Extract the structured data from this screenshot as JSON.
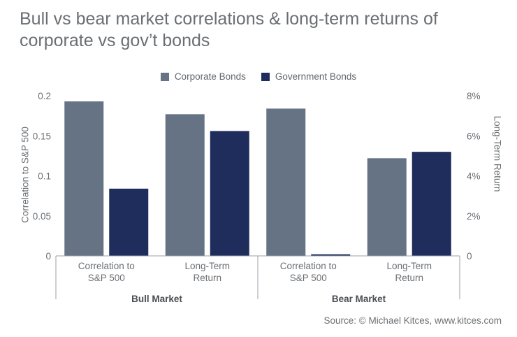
{
  "title": "Bull vs bear market correlations & long-term returns of corporate vs gov’t bonds",
  "source": "Source: © Michael Kitces, www.kitces.com",
  "colors": {
    "corporate": "#657385",
    "government": "#1f2d5c",
    "axis": "#9aa0a6"
  },
  "chart_data": {
    "type": "bar",
    "left_axis": {
      "label": "Correlation to S&P 500",
      "ylim": [
        0,
        0.2
      ],
      "ticks": [
        "0",
        "0.05",
        "0.1",
        "0.15",
        "0.2"
      ],
      "tick_values": [
        0,
        0.05,
        0.1,
        0.15,
        0.2
      ]
    },
    "right_axis": {
      "label": "Long-Term Return",
      "ylim": [
        0,
        8
      ],
      "ticks": [
        "0",
        "2%",
        "4%",
        "6%",
        "8%"
      ],
      "tick_values": [
        0,
        2,
        4,
        6,
        8
      ]
    },
    "groups": [
      {
        "name": "Bull Market",
        "categories": [
          {
            "label": [
              "Correlation to",
              "S&P 500"
            ],
            "axis": "left",
            "values": [
              0.193,
              0.084
            ]
          },
          {
            "label": [
              "Long-Term",
              "Return"
            ],
            "axis": "right",
            "values": [
              7.08,
              6.24
            ]
          }
        ]
      },
      {
        "name": "Bear Market",
        "categories": [
          {
            "label": [
              "Correlation to",
              "S&P 500"
            ],
            "axis": "left",
            "values": [
              0.184,
              0.002
            ]
          },
          {
            "label": [
              "Long-Term",
              "Return"
            ],
            "axis": "right",
            "values": [
              4.88,
              5.2
            ]
          }
        ]
      }
    ],
    "series": [
      {
        "name": "Corporate Bonds"
      },
      {
        "name": "Government Bonds"
      }
    ],
    "legend_position": "top-center"
  }
}
